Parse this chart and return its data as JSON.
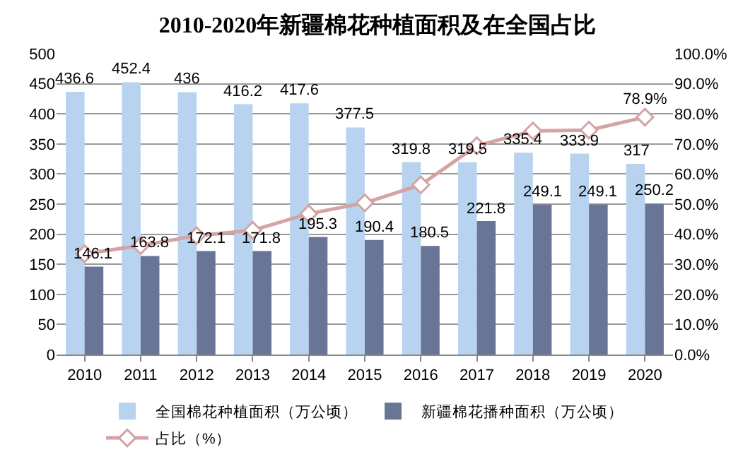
{
  "chart_data": {
    "type": "bar",
    "title": "2010-2020年新疆棉花种植面积及在全国占比",
    "categories": [
      "2010",
      "2011",
      "2012",
      "2013",
      "2014",
      "2015",
      "2016",
      "2017",
      "2018",
      "2019",
      "2020"
    ],
    "series": [
      {
        "name": "全国棉花种植面积（万公顷）",
        "color": "#b8d3ef",
        "values": [
          436.6,
          452.4,
          436,
          416.2,
          417.6,
          377.5,
          319.8,
          319.5,
          335.4,
          333.9,
          317
        ],
        "value_labels": [
          "436.6",
          "452.4",
          "436",
          "416.2",
          "417.6",
          "377.5",
          "319.8",
          "319.5",
          "335.4",
          "333.9",
          "317"
        ]
      },
      {
        "name": "新疆棉花播种面积（万公顷）",
        "color": "#687597",
        "values": [
          146.1,
          163.8,
          172.1,
          171.8,
          195.3,
          190.4,
          180.5,
          221.8,
          249.1,
          249.1,
          250.2
        ],
        "value_labels": [
          "146.1",
          "163.8",
          "172.1",
          "171.8",
          "195.3",
          "190.4",
          "180.5",
          "221.8",
          "249.1",
          "249.1",
          "250.2"
        ]
      },
      {
        "name": "占比（%）",
        "type": "line",
        "axis": "y2",
        "color": "#d4a3a3",
        "marker": "diamond",
        "values": [
          33.5,
          36.2,
          39.5,
          41.3,
          46.8,
          50.4,
          56.4,
          69.4,
          74.3,
          74.6,
          78.9
        ],
        "value_labels": [
          null,
          null,
          null,
          null,
          null,
          null,
          null,
          null,
          null,
          null,
          "78.9%"
        ]
      }
    ],
    "ylim": [
      0,
      500
    ],
    "yticks": [
      0,
      50,
      100,
      150,
      200,
      250,
      300,
      350,
      400,
      450,
      500
    ],
    "y2lim": [
      0,
      100
    ],
    "y2ticks": [
      {
        "value": 0,
        "label": "0.0%"
      },
      {
        "value": 10,
        "label": "10.0%"
      },
      {
        "value": 20,
        "label": "20.0%"
      },
      {
        "value": 30,
        "label": "30.0%"
      },
      {
        "value": 40,
        "label": "40.0%"
      },
      {
        "value": 50,
        "label": "50.0%"
      },
      {
        "value": 60,
        "label": "60.0%"
      },
      {
        "value": 70,
        "label": "70.0%"
      },
      {
        "value": 80,
        "label": "80.0%"
      },
      {
        "value": 90,
        "label": "90.0%"
      },
      {
        "value": 100,
        "label": "100.0%"
      }
    ],
    "grid": "y",
    "legend": "bottom"
  }
}
